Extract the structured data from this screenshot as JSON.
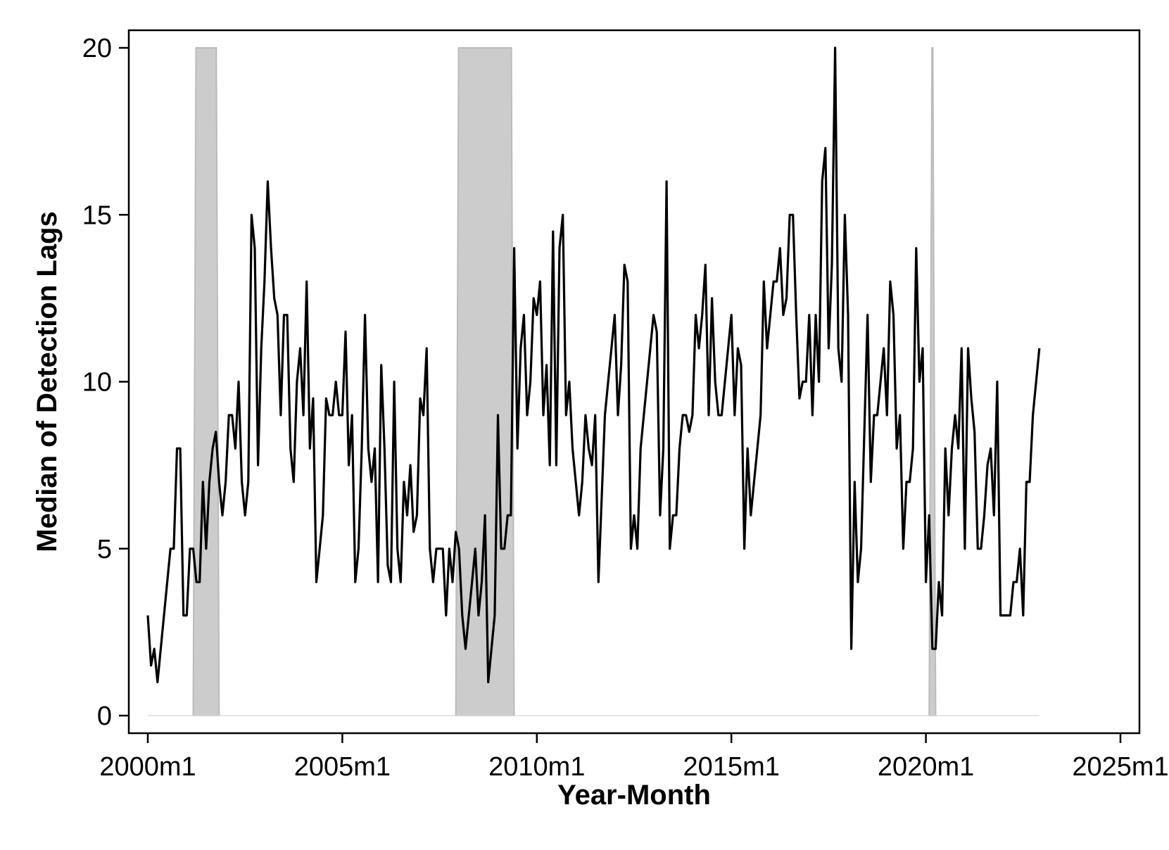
{
  "chart_data": {
    "type": "line",
    "title": "",
    "xlabel": "Year-Month",
    "ylabel": "Median of Detection Lags",
    "xlim": [
      "2000m1",
      "2025m1"
    ],
    "ylim": [
      0,
      20
    ],
    "grid": false,
    "x_ticks": [
      {
        "label": "2000m1",
        "value": "2000-01"
      },
      {
        "label": "2005m1",
        "value": "2005-01"
      },
      {
        "label": "2010m1",
        "value": "2010-01"
      },
      {
        "label": "2015m1",
        "value": "2015-01"
      },
      {
        "label": "2020m1",
        "value": "2020-01"
      },
      {
        "label": "2025m1",
        "value": "2025-01"
      }
    ],
    "y_ticks": [
      0,
      5,
      10,
      15,
      20
    ],
    "shaded_periods": [
      {
        "start": "2001-03",
        "end": "2001-11"
      },
      {
        "start": "2007-12",
        "end": "2009-06"
      },
      {
        "start": "2020-02",
        "end": "2020-04"
      }
    ],
    "colors": {
      "line": "#000000",
      "shade": "#cccccc",
      "baseline": "#dddddd"
    },
    "series": [
      {
        "start": "2000-01",
        "values": [
          3,
          1.5,
          2,
          1,
          2,
          3,
          4,
          5,
          5,
          8,
          8,
          3,
          3,
          5,
          5,
          4,
          4,
          7,
          5,
          7,
          8,
          8.5,
          7,
          6,
          7,
          9,
          9,
          8,
          10,
          7,
          6,
          7,
          15,
          14,
          7.5,
          11,
          13,
          16,
          14,
          12.5,
          12,
          9,
          12,
          12,
          8,
          7,
          10,
          11,
          9,
          13,
          8,
          9.5,
          4,
          5,
          6,
          9.5,
          9,
          9,
          10,
          9,
          9,
          11.5,
          7.5,
          9,
          4,
          5,
          8,
          12,
          8,
          7,
          8,
          4,
          10.5,
          8,
          4.5,
          4,
          10,
          5,
          4,
          7,
          6,
          7.5,
          5.5,
          6,
          9.5,
          9,
          11,
          5,
          4,
          5,
          5,
          5,
          3,
          5,
          4,
          5.5,
          5,
          3,
          2,
          3,
          4,
          5,
          3,
          4,
          6,
          1,
          2,
          3,
          9,
          5,
          5,
          6,
          6,
          14,
          8,
          11,
          12,
          9,
          10,
          12.5,
          12,
          13,
          9,
          10.5,
          7.5,
          14.5,
          7.5,
          14,
          15,
          9,
          10,
          8,
          7,
          6,
          7,
          9,
          8,
          7.5,
          9,
          4,
          6.5,
          9,
          10,
          11,
          12,
          9,
          10.5,
          13.5,
          13,
          5,
          6,
          5,
          8,
          9,
          10,
          11,
          12,
          11.5,
          6,
          8,
          16,
          5,
          6,
          6,
          8,
          9,
          9,
          8.5,
          9,
          12,
          11,
          12,
          13.5,
          9,
          12.5,
          10,
          9,
          9,
          10,
          11,
          12,
          9,
          11,
          10.5,
          5,
          8,
          6,
          7,
          8,
          9,
          13,
          11,
          12,
          13,
          13,
          14,
          12,
          12.5,
          15,
          15,
          12,
          9.5,
          10,
          10,
          12,
          9,
          12,
          10,
          16,
          17,
          11,
          13.5,
          20,
          11,
          10,
          15,
          12,
          2,
          7,
          4,
          5,
          8.5,
          12,
          7,
          9,
          9,
          10,
          11,
          9,
          13,
          12,
          8,
          9,
          5,
          7,
          7,
          8,
          14,
          10,
          11,
          4,
          6,
          2,
          2,
          4,
          3,
          8,
          6,
          8,
          9,
          8,
          11,
          5,
          11,
          9.5,
          8.5,
          5,
          5,
          6,
          7.5,
          8,
          6,
          10,
          3,
          3,
          3,
          3,
          4,
          4,
          5,
          3,
          7,
          7,
          9,
          10,
          11
        ]
      }
    ]
  }
}
